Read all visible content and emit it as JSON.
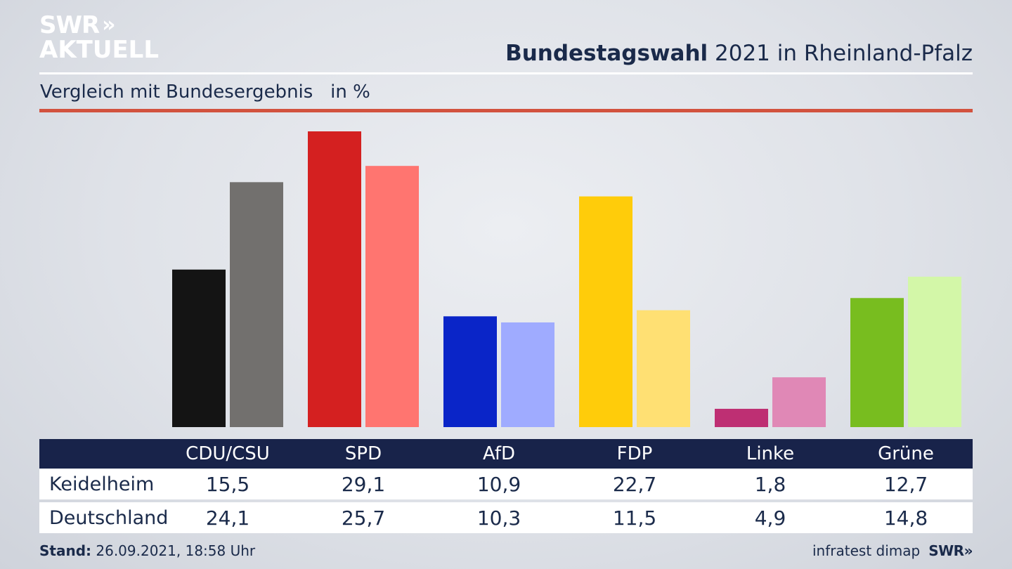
{
  "logo": {
    "line1": "SWR",
    "chevrons": "»",
    "line2": "AKTUELL"
  },
  "header": {
    "title_bold": "Bundestagswahl",
    "title_rest": " 2021 in Rheinland-Pfalz"
  },
  "subtitle": "Vergleich mit Bundesergebnis   in %",
  "footer": {
    "stand_label": "Stand:",
    "stand_value": " 26.09.2021, 18:58 Uhr",
    "source": "infratest dimap",
    "brand": "SWR»"
  },
  "chart_data": {
    "type": "bar",
    "title": "Bundestagswahl 2021 in Rheinland-Pfalz",
    "subtitle": "Vergleich mit Bundesergebnis   in %",
    "categories": [
      "CDU/CSU",
      "SPD",
      "AfD",
      "FDP",
      "Linke",
      "Grüne"
    ],
    "series": [
      {
        "name": "Keidelheim",
        "values": [
          15.5,
          29.1,
          10.9,
          22.7,
          1.8,
          12.7
        ],
        "colors": [
          "#141414",
          "#d42020",
          "#0a25c8",
          "#ffcc0a",
          "#be2f73",
          "#78bd1f"
        ]
      },
      {
        "name": "Deutschland",
        "values": [
          24.1,
          25.7,
          10.3,
          11.5,
          4.9,
          14.8
        ],
        "colors": [
          "#72706e",
          "#ff7570",
          "#9fabff",
          "#ffe073",
          "#e088b6",
          "#d3f7a8"
        ]
      }
    ],
    "ylim": [
      0,
      29.1
    ],
    "grid": false,
    "legend": "table-below"
  }
}
